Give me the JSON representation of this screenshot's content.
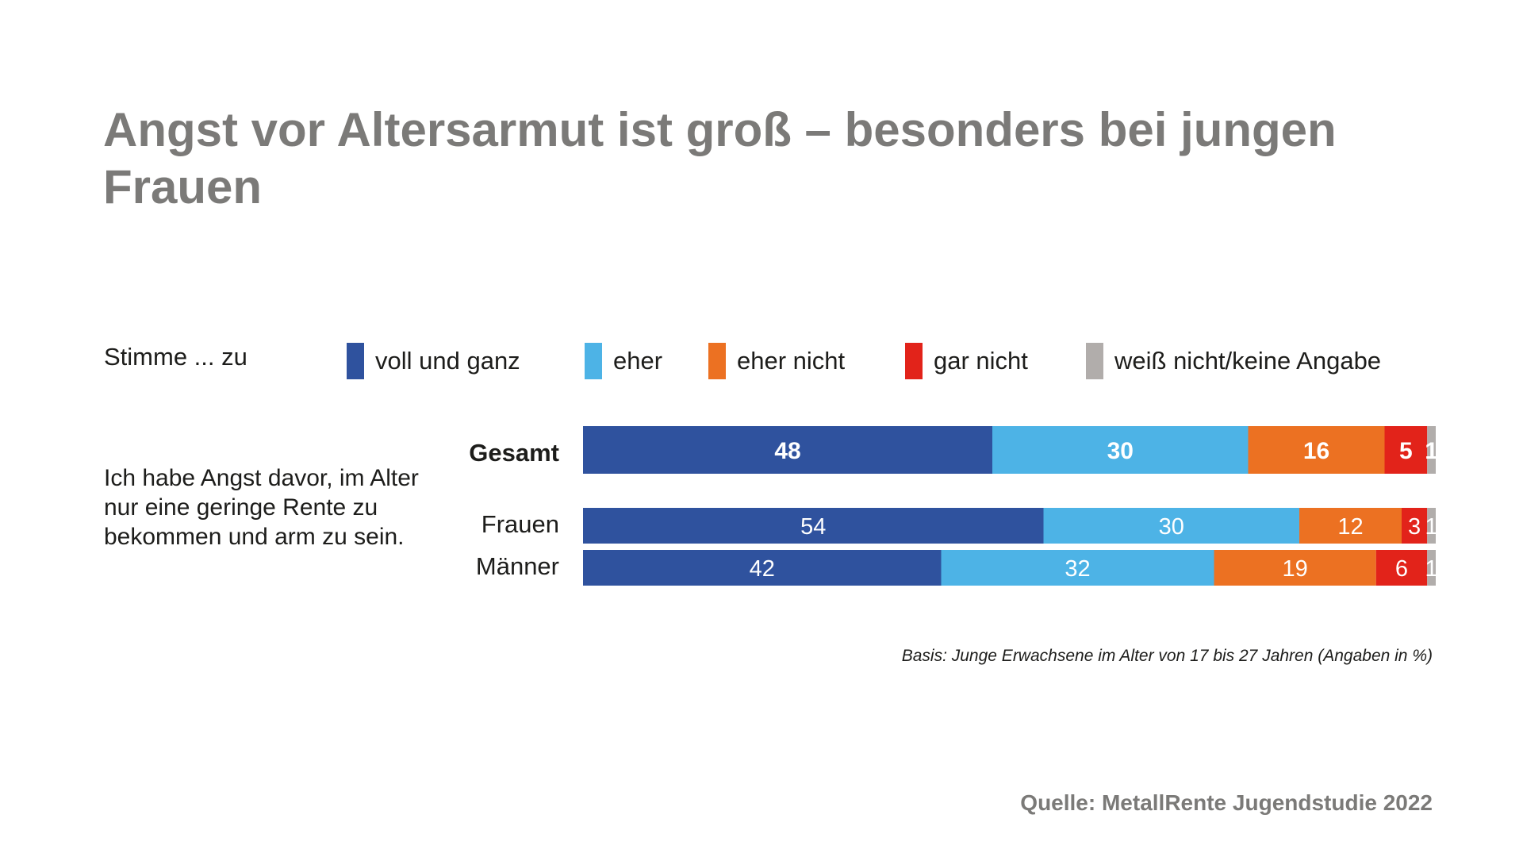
{
  "title": "Angst vor Altersarmut ist groß – besonders bei jungen Frauen",
  "legend": {
    "prefix": "Stimme ... zu",
    "items": [
      {
        "label": "voll und ganz",
        "color": "#2f529e"
      },
      {
        "label": "eher",
        "color": "#4db3e6"
      },
      {
        "label": "eher nicht",
        "color": "#ec7122"
      },
      {
        "label": "gar nicht",
        "color": "#e2231a"
      },
      {
        "label": "weiß nicht/keine Angabe",
        "color": "#b1adab"
      }
    ]
  },
  "statement": "Ich habe Angst davor, im Alter nur eine geringe Rente zu bekommen und arm zu sein.",
  "basis": "Basis: Junge Erwachsene im Alter von 17 bis 27 Jahren (Angaben in %)",
  "source": "Quelle: MetallRente Jugendstudie 2022",
  "chart_data": {
    "type": "bar",
    "orientation": "horizontal-stacked-100",
    "categories": [
      "Gesamt",
      "Frauen",
      "Männer"
    ],
    "series": [
      {
        "name": "voll und ganz",
        "values": [
          48,
          54,
          42
        ]
      },
      {
        "name": "eher",
        "values": [
          30,
          30,
          32
        ]
      },
      {
        "name": "eher nicht",
        "values": [
          16,
          12,
          19
        ]
      },
      {
        "name": "gar nicht",
        "values": [
          5,
          3,
          6
        ]
      },
      {
        "name": "weiß nicht/keine Angabe",
        "values": [
          1,
          1,
          1
        ]
      }
    ],
    "xlim": [
      0,
      100
    ],
    "grid": false,
    "legend_position": "top"
  }
}
